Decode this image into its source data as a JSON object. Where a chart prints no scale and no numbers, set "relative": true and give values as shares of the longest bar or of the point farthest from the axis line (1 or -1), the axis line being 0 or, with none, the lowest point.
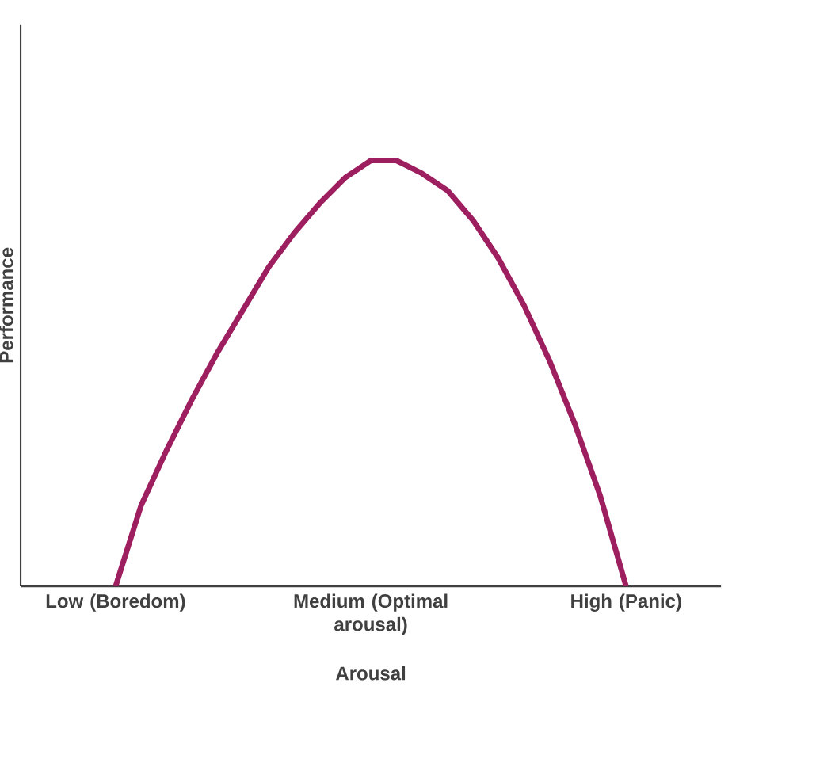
{
  "chart_data": {
    "type": "line",
    "relative": true,
    "xlabel": "Arousal",
    "ylabel": "Performance",
    "color": "#9e1f5f",
    "marker": "none",
    "line_style": "solid",
    "categories": [
      "Low (Boredom)",
      null,
      null,
      null,
      null,
      null,
      null,
      null,
      null,
      null,
      "Medium (Optimal arousal)",
      null,
      null,
      null,
      null,
      null,
      null,
      null,
      null,
      null,
      "High (Panic)"
    ],
    "values": [
      0,
      0.19,
      0.32,
      0.44,
      0.55,
      0.65,
      0.75,
      0.83,
      0.9,
      0.96,
      1,
      1,
      0.97,
      0.93,
      0.86,
      0.77,
      0.66,
      0.53,
      0.38,
      0.21,
      0
    ]
  }
}
